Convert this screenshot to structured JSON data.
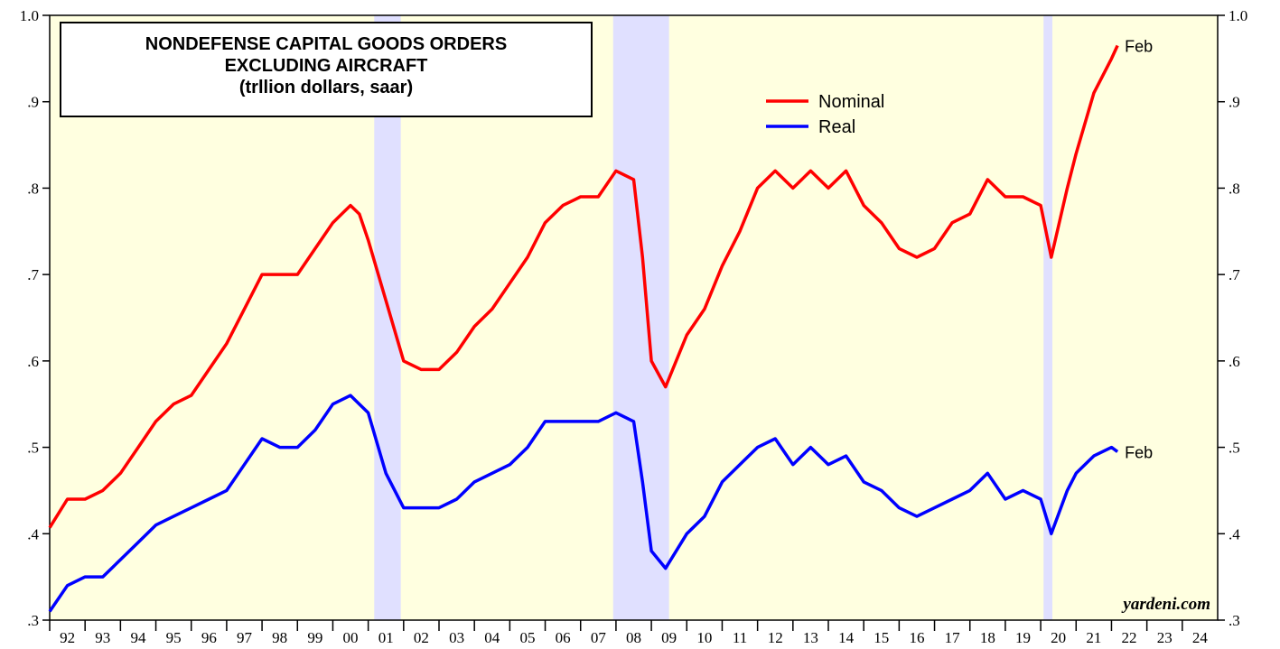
{
  "chart_data": {
    "type": "line",
    "title": [
      "NONDEFENSE CAPITAL GOODS ORDERS",
      "EXCLUDING AIRCRAFT",
      "(trllion dollars, saar)"
    ],
    "source": "yardeni.com",
    "x": [
      1992,
      1992.5,
      1993,
      1993.5,
      1994,
      1994.5,
      1995,
      1995.5,
      1996,
      1996.5,
      1997,
      1997.5,
      1998,
      1998.5,
      1999,
      1999.5,
      2000,
      2000.5,
      2000.75,
      2001,
      2001.5,
      2002,
      2002.5,
      2003,
      2003.5,
      2004,
      2004.5,
      2005,
      2005.5,
      2006,
      2006.5,
      2007,
      2007.5,
      2008,
      2008.5,
      2008.75,
      2009,
      2009.4,
      2010,
      2010.5,
      2011,
      2011.5,
      2012,
      2012.5,
      2013,
      2013.5,
      2014,
      2014.5,
      2015,
      2015.5,
      2016,
      2016.5,
      2017,
      2017.5,
      2018,
      2018.5,
      2019,
      2019.5,
      2020,
      2020.3,
      2020.75,
      2021,
      2021.5,
      2022,
      2022.17
    ],
    "series": [
      {
        "name": "Nominal",
        "color": "#ff0000",
        "end_label": "Feb",
        "values": [
          0.407,
          0.44,
          0.44,
          0.45,
          0.47,
          0.5,
          0.53,
          0.55,
          0.56,
          0.59,
          0.62,
          0.66,
          0.7,
          0.7,
          0.7,
          0.73,
          0.76,
          0.78,
          0.77,
          0.74,
          0.67,
          0.6,
          0.59,
          0.59,
          0.61,
          0.64,
          0.66,
          0.69,
          0.72,
          0.76,
          0.78,
          0.79,
          0.79,
          0.82,
          0.81,
          0.72,
          0.6,
          0.57,
          0.63,
          0.66,
          0.71,
          0.75,
          0.8,
          0.82,
          0.8,
          0.82,
          0.8,
          0.82,
          0.78,
          0.76,
          0.73,
          0.72,
          0.73,
          0.76,
          0.77,
          0.81,
          0.79,
          0.79,
          0.78,
          0.72,
          0.8,
          0.84,
          0.91,
          0.95,
          0.965
        ]
      },
      {
        "name": "Real",
        "color": "#0000ff",
        "end_label": "Feb",
        "values": [
          0.31,
          0.34,
          0.35,
          0.35,
          0.37,
          0.39,
          0.41,
          0.42,
          0.43,
          0.44,
          0.45,
          0.48,
          0.51,
          0.5,
          0.5,
          0.52,
          0.55,
          0.56,
          0.55,
          0.54,
          0.47,
          0.43,
          0.43,
          0.43,
          0.44,
          0.46,
          0.47,
          0.48,
          0.5,
          0.53,
          0.53,
          0.53,
          0.53,
          0.54,
          0.53,
          0.46,
          0.38,
          0.36,
          0.4,
          0.42,
          0.46,
          0.48,
          0.5,
          0.51,
          0.48,
          0.5,
          0.48,
          0.49,
          0.46,
          0.45,
          0.43,
          0.42,
          0.43,
          0.44,
          0.45,
          0.47,
          0.44,
          0.45,
          0.44,
          0.4,
          0.45,
          0.47,
          0.49,
          0.5,
          0.495
        ]
      }
    ],
    "shaded_periods": [
      [
        2001.17,
        2001.92
      ],
      [
        2007.92,
        2009.5
      ],
      [
        2020.08,
        2020.33
      ]
    ],
    "background_color": "#ffffe0",
    "shade_color": "#e0e0ff",
    "xlim": [
      1992,
      2025
    ],
    "xticks": [
      {
        "value": 1992,
        "label": "92"
      },
      {
        "value": 1993,
        "label": "93"
      },
      {
        "value": 1994,
        "label": "94"
      },
      {
        "value": 1995,
        "label": "95"
      },
      {
        "value": 1996,
        "label": "96"
      },
      {
        "value": 1997,
        "label": "97"
      },
      {
        "value": 1998,
        "label": "98"
      },
      {
        "value": 1999,
        "label": "99"
      },
      {
        "value": 2000,
        "label": "00"
      },
      {
        "value": 2001,
        "label": "01"
      },
      {
        "value": 2002,
        "label": "02"
      },
      {
        "value": 2003,
        "label": "03"
      },
      {
        "value": 2004,
        "label": "04"
      },
      {
        "value": 2005,
        "label": "05"
      },
      {
        "value": 2006,
        "label": "06"
      },
      {
        "value": 2007,
        "label": "07"
      },
      {
        "value": 2008,
        "label": "08"
      },
      {
        "value": 2009,
        "label": "09"
      },
      {
        "value": 2010,
        "label": "10"
      },
      {
        "value": 2011,
        "label": "11"
      },
      {
        "value": 2012,
        "label": "12"
      },
      {
        "value": 2013,
        "label": "13"
      },
      {
        "value": 2014,
        "label": "14"
      },
      {
        "value": 2015,
        "label": "15"
      },
      {
        "value": 2016,
        "label": "16"
      },
      {
        "value": 2017,
        "label": "17"
      },
      {
        "value": 2018,
        "label": "18"
      },
      {
        "value": 2019,
        "label": "19"
      },
      {
        "value": 2020,
        "label": "20"
      },
      {
        "value": 2021,
        "label": "21"
      },
      {
        "value": 2022,
        "label": "22"
      },
      {
        "value": 2023,
        "label": "23"
      },
      {
        "value": 2024,
        "label": "24"
      }
    ],
    "ylim": [
      0.3,
      1.0
    ],
    "yticks": [
      {
        "value": 0.3,
        "label": ".3"
      },
      {
        "value": 0.4,
        "label": ".4"
      },
      {
        "value": 0.5,
        "label": ".5"
      },
      {
        "value": 0.6,
        "label": ".6"
      },
      {
        "value": 0.7,
        "label": ".7"
      },
      {
        "value": 0.8,
        "label": ".8"
      },
      {
        "value": 0.9,
        "label": ".9"
      },
      {
        "value": 1.0,
        "label": "1.0"
      }
    ],
    "legend": "top-center"
  }
}
